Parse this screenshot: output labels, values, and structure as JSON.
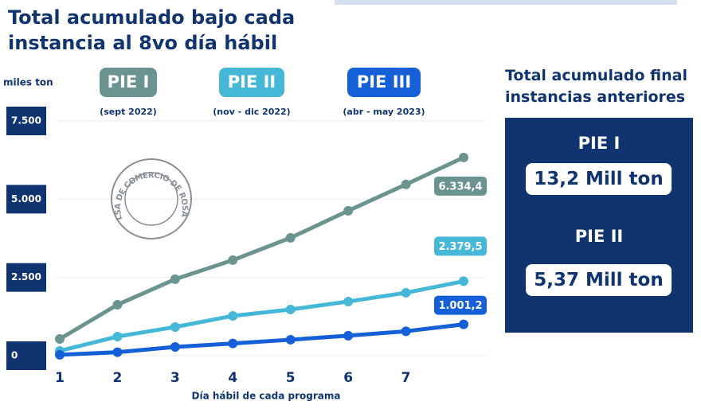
{
  "chart_data": {
    "type": "line",
    "title": "Total acumulado bajo cada instancia al 8vo día hábil",
    "y_label": "miles ton",
    "x_label": "Día hábil de cada programa",
    "watermark": "BOLSA DE COMERCIO DE ROSARIO",
    "categories": [
      "1",
      "2",
      "3",
      "4",
      "5",
      "6",
      "7",
      null
    ],
    "series": [
      {
        "name": "PIE I",
        "period": "(sept 2022)",
        "color": "#6b9390",
        "values": [
          534,
          1628,
          2443,
          3053,
          3766,
          4631,
          5471,
          6334.4
        ],
        "value_labels": [
          null,
          null,
          null,
          null,
          null,
          null,
          null,
          "6.334,4"
        ]
      },
      {
        "name": "PIE II",
        "period": "(nov - dic 2022)",
        "color": "#45b8d8",
        "values": [
          153,
          611,
          916,
          1272,
          1476,
          1730,
          2010,
          2379.5
        ],
        "value_labels": [
          null,
          null,
          null,
          null,
          null,
          null,
          null,
          "2.379,5"
        ]
      },
      {
        "name": "PIE III",
        "period": "(abr - may 2023)",
        "color": "#1560d8",
        "values": [
          30,
          110,
          280,
          390,
          510,
          640,
          780,
          1001.2
        ],
        "value_labels": [
          null,
          null,
          null,
          null,
          null,
          null,
          null,
          "1.001,2"
        ]
      }
    ],
    "ylim": [
      0,
      7500
    ],
    "yticks": [
      0,
      {
        "value": 2500,
        "label": "2.500"
      },
      {
        "value": 5000,
        "label": "5.000"
      },
      {
        "value": 7500,
        "label": "7.500"
      }
    ],
    "grid": true
  },
  "sidebar": {
    "title": "Total acumulado final instancias anteriores",
    "items": [
      {
        "name": "PIE I",
        "value": "13,2 Mill ton"
      },
      {
        "name": "PIE II",
        "value": "5,37 Mill ton"
      }
    ]
  }
}
